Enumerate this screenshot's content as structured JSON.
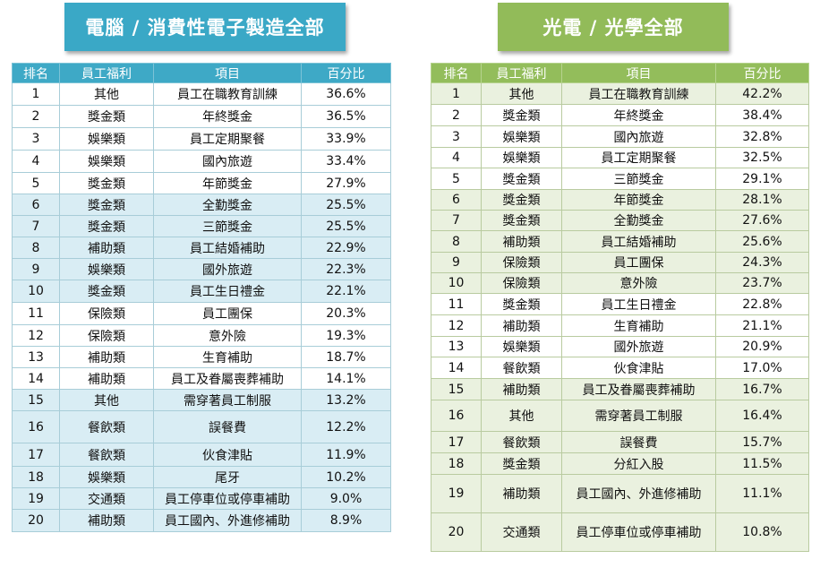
{
  "left": {
    "title": "電腦 / 消費性電子製造全部",
    "headers": [
      "排名",
      "員工福利",
      "項目",
      "百分比"
    ],
    "rows": [
      {
        "rank": "1",
        "category": "其他",
        "item": "員工在職教育訓練",
        "percent": "36.6%"
      },
      {
        "rank": "2",
        "category": "獎金類",
        "item": "年終獎金",
        "percent": "36.5%"
      },
      {
        "rank": "3",
        "category": "娛樂類",
        "item": "員工定期聚餐",
        "percent": "33.9%"
      },
      {
        "rank": "4",
        "category": "娛樂類",
        "item": "國內旅遊",
        "percent": "33.4%"
      },
      {
        "rank": "5",
        "category": "獎金類",
        "item": "年節獎金",
        "percent": "27.9%"
      },
      {
        "rank": "6",
        "category": "獎金類",
        "item": "全勤獎金",
        "percent": "25.5%"
      },
      {
        "rank": "7",
        "category": "獎金類",
        "item": "三節獎金",
        "percent": "25.5%"
      },
      {
        "rank": "8",
        "category": "補助類",
        "item": "員工結婚補助",
        "percent": "22.9%"
      },
      {
        "rank": "9",
        "category": "娛樂類",
        "item": "國外旅遊",
        "percent": "22.3%"
      },
      {
        "rank": "10",
        "category": "獎金類",
        "item": "員工生日禮金",
        "percent": "22.1%"
      },
      {
        "rank": "11",
        "category": "保險類",
        "item": "員工團保",
        "percent": "20.3%"
      },
      {
        "rank": "12",
        "category": "保險類",
        "item": "意外險",
        "percent": "19.3%"
      },
      {
        "rank": "13",
        "category": "補助類",
        "item": "生育補助",
        "percent": "18.7%"
      },
      {
        "rank": "14",
        "category": "補助類",
        "item": "員工及眷屬喪葬補助",
        "percent": "14.1%"
      },
      {
        "rank": "15",
        "category": "其他",
        "item": "需穿著員工制服",
        "percent": "13.2%"
      },
      {
        "rank": "16",
        "category": "餐飲類",
        "item": "誤餐費",
        "percent": "12.2%"
      },
      {
        "rank": "17",
        "category": "餐飲類",
        "item": "伙食津貼",
        "percent": "11.9%"
      },
      {
        "rank": "18",
        "category": "娛樂類",
        "item": "尾牙",
        "percent": "10.2%"
      },
      {
        "rank": "19",
        "category": "交通類",
        "item": "員工停車位或停車補助",
        "percent": "9.0%"
      },
      {
        "rank": "20",
        "category": "補助類",
        "item": "員工國內、外進修補助",
        "percent": "8.9%"
      }
    ]
  },
  "right": {
    "title": "光電 / 光學全部",
    "headers": [
      "排名",
      "員工福利",
      "項目",
      "百分比"
    ],
    "rows": [
      {
        "rank": "1",
        "category": "其他",
        "item": "員工在職教育訓練",
        "percent": "42.2%"
      },
      {
        "rank": "2",
        "category": "獎金類",
        "item": "年終獎金",
        "percent": "38.4%"
      },
      {
        "rank": "3",
        "category": "娛樂類",
        "item": "國內旅遊",
        "percent": "32.8%"
      },
      {
        "rank": "4",
        "category": "娛樂類",
        "item": "員工定期聚餐",
        "percent": "32.5%"
      },
      {
        "rank": "5",
        "category": "獎金類",
        "item": "三節獎金",
        "percent": "29.1%"
      },
      {
        "rank": "6",
        "category": "獎金類",
        "item": "年節獎金",
        "percent": "28.1%"
      },
      {
        "rank": "7",
        "category": "獎金類",
        "item": "全勤獎金",
        "percent": "27.6%"
      },
      {
        "rank": "8",
        "category": "補助類",
        "item": "員工結婚補助",
        "percent": "25.6%"
      },
      {
        "rank": "9",
        "category": "保險類",
        "item": "員工團保",
        "percent": "24.3%"
      },
      {
        "rank": "10",
        "category": "保險類",
        "item": "意外險",
        "percent": "23.7%"
      },
      {
        "rank": "11",
        "category": "獎金類",
        "item": "員工生日禮金",
        "percent": "22.8%"
      },
      {
        "rank": "12",
        "category": "補助類",
        "item": "生育補助",
        "percent": "21.1%"
      },
      {
        "rank": "13",
        "category": "娛樂類",
        "item": "國外旅遊",
        "percent": "20.9%"
      },
      {
        "rank": "14",
        "category": "餐飲類",
        "item": "伙食津貼",
        "percent": "17.0%"
      },
      {
        "rank": "15",
        "category": "補助類",
        "item": "員工及眷屬喪葬補助",
        "percent": "16.7%"
      },
      {
        "rank": "16",
        "category": "其他",
        "item": "需穿著員工制服",
        "percent": "16.4%"
      },
      {
        "rank": "17",
        "category": "餐飲類",
        "item": "誤餐費",
        "percent": "15.7%"
      },
      {
        "rank": "18",
        "category": "獎金類",
        "item": "分紅入股",
        "percent": "11.5%"
      },
      {
        "rank": "19",
        "category": "補助類",
        "item": "員工國內、外進修補助",
        "percent": "11.1%"
      },
      {
        "rank": "20",
        "category": "交通類",
        "item": "員工停車位或停車補助",
        "percent": "10.8%"
      }
    ]
  }
}
